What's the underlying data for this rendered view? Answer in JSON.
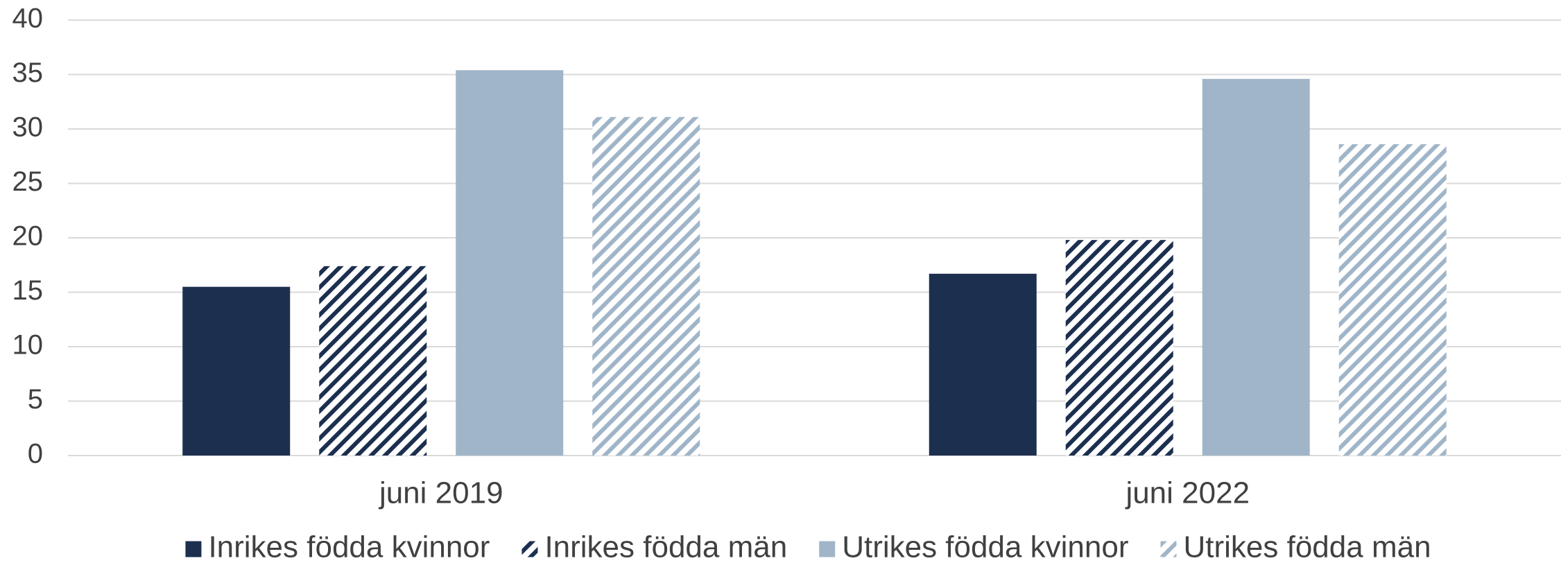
{
  "chart_data": {
    "type": "bar",
    "categories": [
      "juni 2019",
      "juni 2022"
    ],
    "series": [
      {
        "name": "Inrikes födda kvinnor",
        "color": "#1c2f4f",
        "hatched": false,
        "values": [
          15.5,
          16.7
        ]
      },
      {
        "name": "Inrikes födda män",
        "color": "#1c2f4f",
        "hatched": true,
        "values": [
          17.4,
          19.8
        ]
      },
      {
        "name": "Utrikes födda kvinnor",
        "color": "#a0b5c8",
        "hatched": false,
        "values": [
          35.4,
          34.6
        ]
      },
      {
        "name": "Utrikes födda män",
        "color": "#a0b5c8",
        "hatched": true,
        "values": [
          31.1,
          28.6
        ]
      }
    ],
    "ylim": [
      0,
      40
    ],
    "yticks": [
      0,
      5,
      10,
      15,
      20,
      25,
      30,
      35,
      40
    ],
    "grid": true,
    "legend": "bottom"
  }
}
